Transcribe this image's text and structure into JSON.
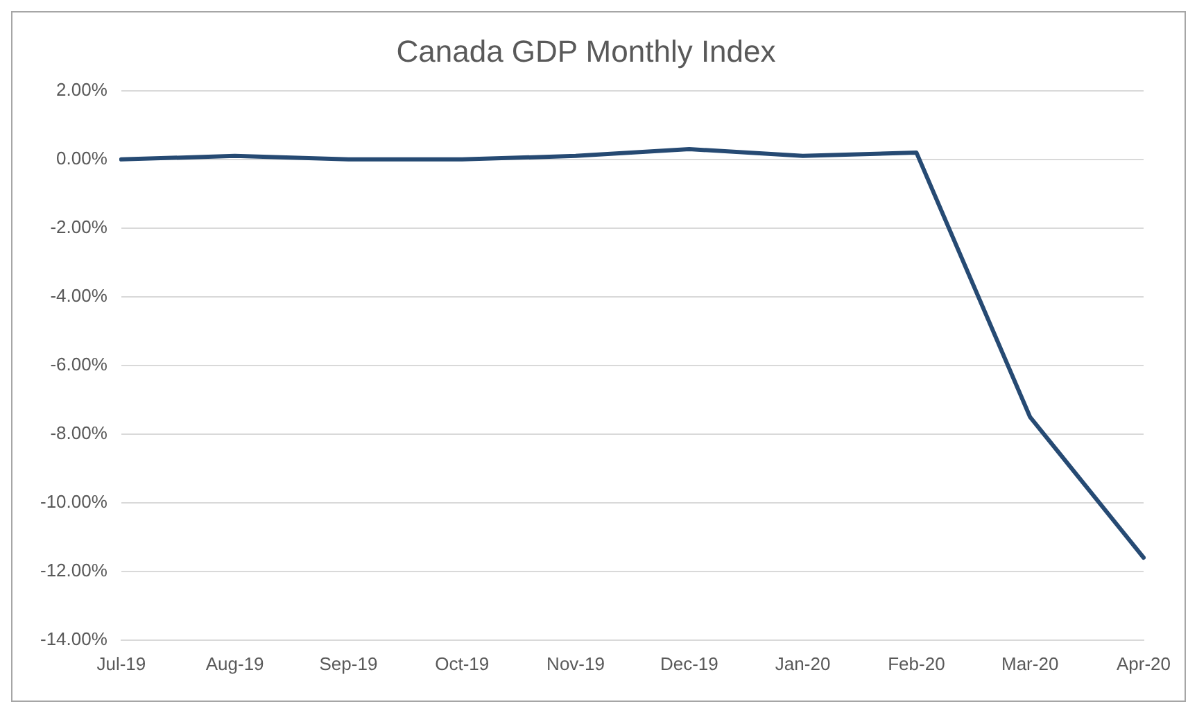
{
  "chart_data": {
    "type": "line",
    "title": "Canada GDP Monthly Index",
    "categories": [
      "Jul-19",
      "Aug-19",
      "Sep-19",
      "Oct-19",
      "Nov-19",
      "Dec-19",
      "Jan-20",
      "Feb-20",
      "Mar-20",
      "Apr-20"
    ],
    "series": [
      {
        "color": "#264a73",
        "values": [
          0.0,
          0.1,
          0.0,
          0.0,
          0.1,
          0.3,
          0.1,
          0.2,
          -7.5,
          -11.6
        ]
      }
    ],
    "ylim": [
      -14,
      2
    ],
    "yticks": [
      {
        "value": -14,
        "label": "-14.00%"
      },
      {
        "value": -12,
        "label": "-12.00%"
      },
      {
        "value": -10,
        "label": "-10.00%"
      },
      {
        "value": -8,
        "label": "-8.00%"
      },
      {
        "value": -6,
        "label": "-6.00%"
      },
      {
        "value": -4,
        "label": "-4.00%"
      },
      {
        "value": -2,
        "label": "-2.00%"
      },
      {
        "value": 0,
        "label": "0.00%"
      },
      {
        "value": 2,
        "label": "2.00%"
      }
    ],
    "grid": "y",
    "legend": false,
    "marker": "none",
    "line_style": "solid"
  }
}
